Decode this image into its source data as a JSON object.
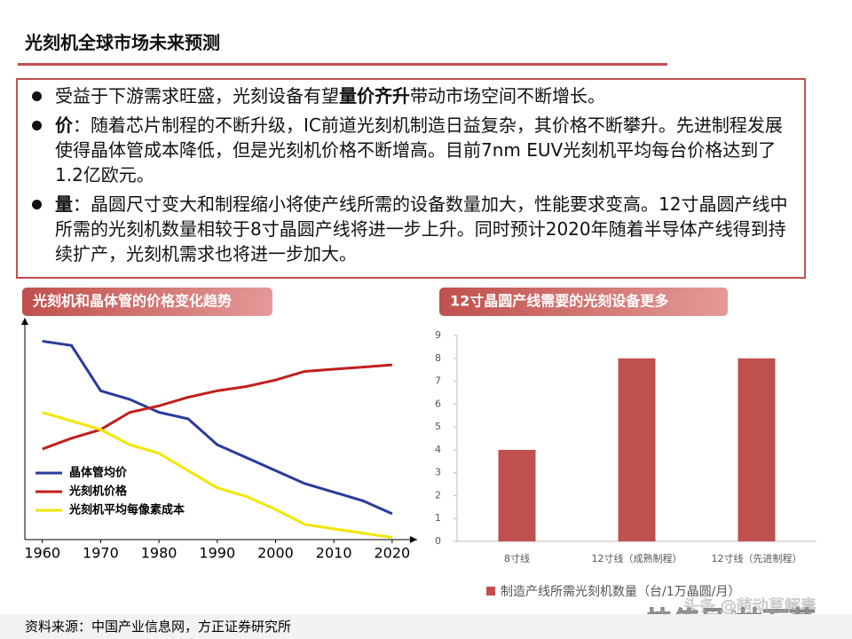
{
  "header": {
    "title": "光刻机全球市场未来预测"
  },
  "bullets": [
    [
      {
        "text": "受益于下游需求旺盛，光刻设备有望",
        "bold": false
      },
      {
        "text": "量价齐升",
        "bold": true
      },
      {
        "text": "带动市场空间不断增长。",
        "bold": false
      }
    ],
    [
      {
        "text": "价",
        "bold": true
      },
      {
        "text": "：随着芯片制程的不断升级，IC前道光刻机制造日益复杂，其价格不断攀升。先进制程发展使得晶体管成本降低，但是光刻机价格不断增高。目前7nm EUV光刻机平均每台价格达到了1.2亿欧元。",
        "bold": false
      }
    ],
    [
      {
        "text": "量",
        "bold": true
      },
      {
        "text": "：晶圆尺寸变大和制程缩小将使产线所需的设备数量加大，性能要求变高。12寸晶圆产线中所需的光刻机数量相较于8寸晶圆产线将进一步上升。同时预计2020年随着半导体产线得到持续扩产，光刻机需求也将进一步加大。",
        "bold": false
      }
    ]
  ],
  "chart_data": [
    {
      "type": "line",
      "title": "光刻机和晶体管的价格变化趋势",
      "x": [
        1960,
        1965,
        1970,
        1975,
        1980,
        1985,
        1990,
        1995,
        2000,
        2005,
        2010,
        2015,
        2020
      ],
      "xlim": [
        1957,
        2022
      ],
      "xticks": [
        1960,
        1970,
        1980,
        1990,
        2000,
        2010,
        2020
      ],
      "ylim": [
        0,
        100
      ],
      "series": [
        {
          "name": "晶体管均价",
          "color": "#2b3a9e",
          "values": [
            92,
            90,
            69,
            65,
            59,
            56,
            44,
            38,
            32,
            26,
            22,
            18,
            12
          ]
        },
        {
          "name": "光刻机价格",
          "color": "#c0201e",
          "values": [
            42,
            47,
            51,
            59,
            62,
            66,
            69,
            71,
            74,
            78,
            79,
            80,
            81
          ]
        },
        {
          "name": "光刻机平均每像素成本",
          "color": "#f2e600",
          "values": [
            59,
            55,
            51,
            44,
            40,
            32,
            24,
            20,
            14,
            7,
            5,
            3,
            1
          ]
        }
      ]
    },
    {
      "type": "bar",
      "title": "12寸晶圆产线需要的光刻设备更多",
      "categories": [
        "8寸线",
        "12寸线（成熟制程）",
        "12寸线（先进制程）"
      ],
      "ylim": [
        0,
        9
      ],
      "yticks": [
        0,
        1,
        2,
        3,
        4,
        5,
        6,
        7,
        8,
        9
      ],
      "series": [
        {
          "name": "制造产线所需光刻机数量（台/1万晶圆/月）",
          "color": "#c0504d",
          "values": [
            4,
            8,
            8
          ]
        }
      ]
    }
  ],
  "source": "资料来源：中国产业信息网，方正证券研究所",
  "watermark": [
    "头条 @萌动草解毒",
    "快传号/林万草"
  ]
}
